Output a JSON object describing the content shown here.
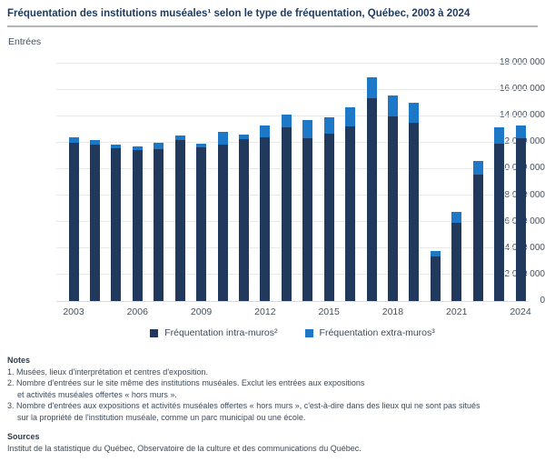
{
  "title": "Fréquentation des institutions muséales¹ selon le type de fréquentation, Québec, 2003 à 2024",
  "chart_data": {
    "type": "bar",
    "stacked": true,
    "title": "Fréquentation des institutions muséales selon le type de fréquentation, Québec, 2003 à 2024",
    "ylabel": "Entrées",
    "ylim": [
      0,
      18000000
    ],
    "ytick_step": 2000000,
    "ytick_labels": [
      "0",
      "2 000 000",
      "4 000 000",
      "6 000 000",
      "8 000 000",
      "10 000 000",
      "12 000 000",
      "14 000 000",
      "16 000 000",
      "18 000 000"
    ],
    "xtick_labels": [
      "2003",
      "2006",
      "2009",
      "2012",
      "2015",
      "2018",
      "2021",
      "2024"
    ],
    "grid": true,
    "legend_position": "bottom",
    "categories": [
      2003,
      2004,
      2005,
      2006,
      2007,
      2008,
      2009,
      2010,
      2011,
      2012,
      2013,
      2014,
      2015,
      2016,
      2017,
      2018,
      2019,
      2020,
      2021,
      2022,
      2023,
      2024
    ],
    "series": [
      {
        "name": "Fréquentation intra-muros²",
        "key": "intra-muros",
        "color": "#21395c",
        "values": [
          11950000,
          11800000,
          11550000,
          11400000,
          11500000,
          12150000,
          11600000,
          11800000,
          12200000,
          12400000,
          13150000,
          12300000,
          12650000,
          13200000,
          15350000,
          13950000,
          13500000,
          3400000,
          5900000,
          9550000,
          11900000,
          12300000
        ]
      },
      {
        "name": "Fréquentation extra-muros³",
        "key": "extra-muros",
        "color": "#1d79c8",
        "values": [
          450000,
          350000,
          300000,
          300000,
          450000,
          350000,
          300000,
          950000,
          350000,
          850000,
          950000,
          1400000,
          1250000,
          1450000,
          1550000,
          1550000,
          1500000,
          350000,
          850000,
          1000000,
          1250000,
          950000
        ]
      }
    ]
  },
  "notes": {
    "heading": "Notes",
    "lines": [
      {
        "text": "1. Musées, lieux d'interprétation et centres d'exposition.",
        "indent": false
      },
      {
        "text": "2. Nombre d'entrées sur le site même des institutions muséales. Exclut les entrées aux expositions",
        "indent": false
      },
      {
        "text": "et activités muséales offertes « hors murs ».",
        "indent": true
      },
      {
        "text": "3. Nombre d'entrées aux expositions et activités muséales offertes « hors murs », c'est-à-dire dans des lieux qui ne sont pas situés",
        "indent": false
      },
      {
        "text": "sur la propriété de l'institution muséale, comme un parc municipal ou une école.",
        "indent": true
      }
    ]
  },
  "sources": {
    "heading": "Sources",
    "text": "Institut de la statistique du Québec, Observatoire de la culture et des communications du Québec."
  }
}
